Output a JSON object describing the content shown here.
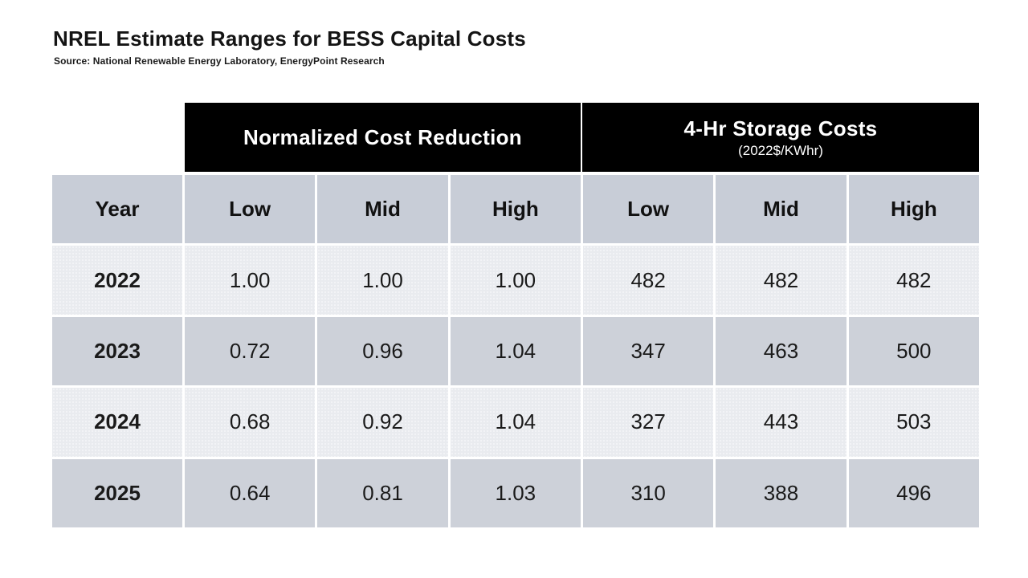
{
  "slide": {
    "title": "NREL Estimate Ranges for BESS Capital Costs",
    "source": "Source: National Renewable Energy Laboratory, EnergyPoint Research"
  },
  "table": {
    "group_headers": [
      {
        "title": "Normalized Cost Reduction",
        "subtitle": ""
      },
      {
        "title": "4-Hr Storage Costs",
        "subtitle": "(2022$/KWhr)"
      }
    ],
    "columns": [
      "Year",
      "Low",
      "Mid",
      "High",
      "Low",
      "Mid",
      "High"
    ],
    "rows": [
      {
        "year": "2022",
        "values": [
          "1.00",
          "1.00",
          "1.00",
          "482",
          "482",
          "482"
        ]
      },
      {
        "year": "2023",
        "values": [
          "0.72",
          "0.96",
          "1.04",
          "347",
          "463",
          "500"
        ]
      },
      {
        "year": "2024",
        "values": [
          "0.68",
          "0.92",
          "1.04",
          "327",
          "443",
          "503"
        ]
      },
      {
        "year": "2025",
        "values": [
          "0.64",
          "0.81",
          "1.03",
          "310",
          "388",
          "496"
        ]
      }
    ]
  },
  "colors": {
    "group_header_bg": "#000000",
    "group_header_text": "#ffffff",
    "column_header_bg": "#c8cdd7",
    "row_dark_bg": "#cdd1d9",
    "row_light_bg": "#e9ebef",
    "text": "#1a1a1a"
  },
  "chart_data": {
    "type": "table",
    "title": "NREL Estimate Ranges for BESS Capital Costs",
    "source": "Source: National Renewable Energy Laboratory, EnergyPoint Research",
    "column_groups": [
      {
        "label": "Normalized Cost Reduction",
        "columns": [
          "Low",
          "Mid",
          "High"
        ]
      },
      {
        "label": "4-Hr Storage Costs (2022$/KWhr)",
        "columns": [
          "Low",
          "Mid",
          "High"
        ]
      }
    ],
    "columns": [
      "Year",
      "Low",
      "Mid",
      "High",
      "Low",
      "Mid",
      "High"
    ],
    "rows": [
      [
        2022,
        1.0,
        1.0,
        1.0,
        482,
        482,
        482
      ],
      [
        2023,
        0.72,
        0.96,
        1.04,
        347,
        463,
        500
      ],
      [
        2024,
        0.68,
        0.92,
        1.04,
        327,
        443,
        503
      ],
      [
        2025,
        0.64,
        0.81,
        1.03,
        310,
        388,
        496
      ]
    ]
  }
}
